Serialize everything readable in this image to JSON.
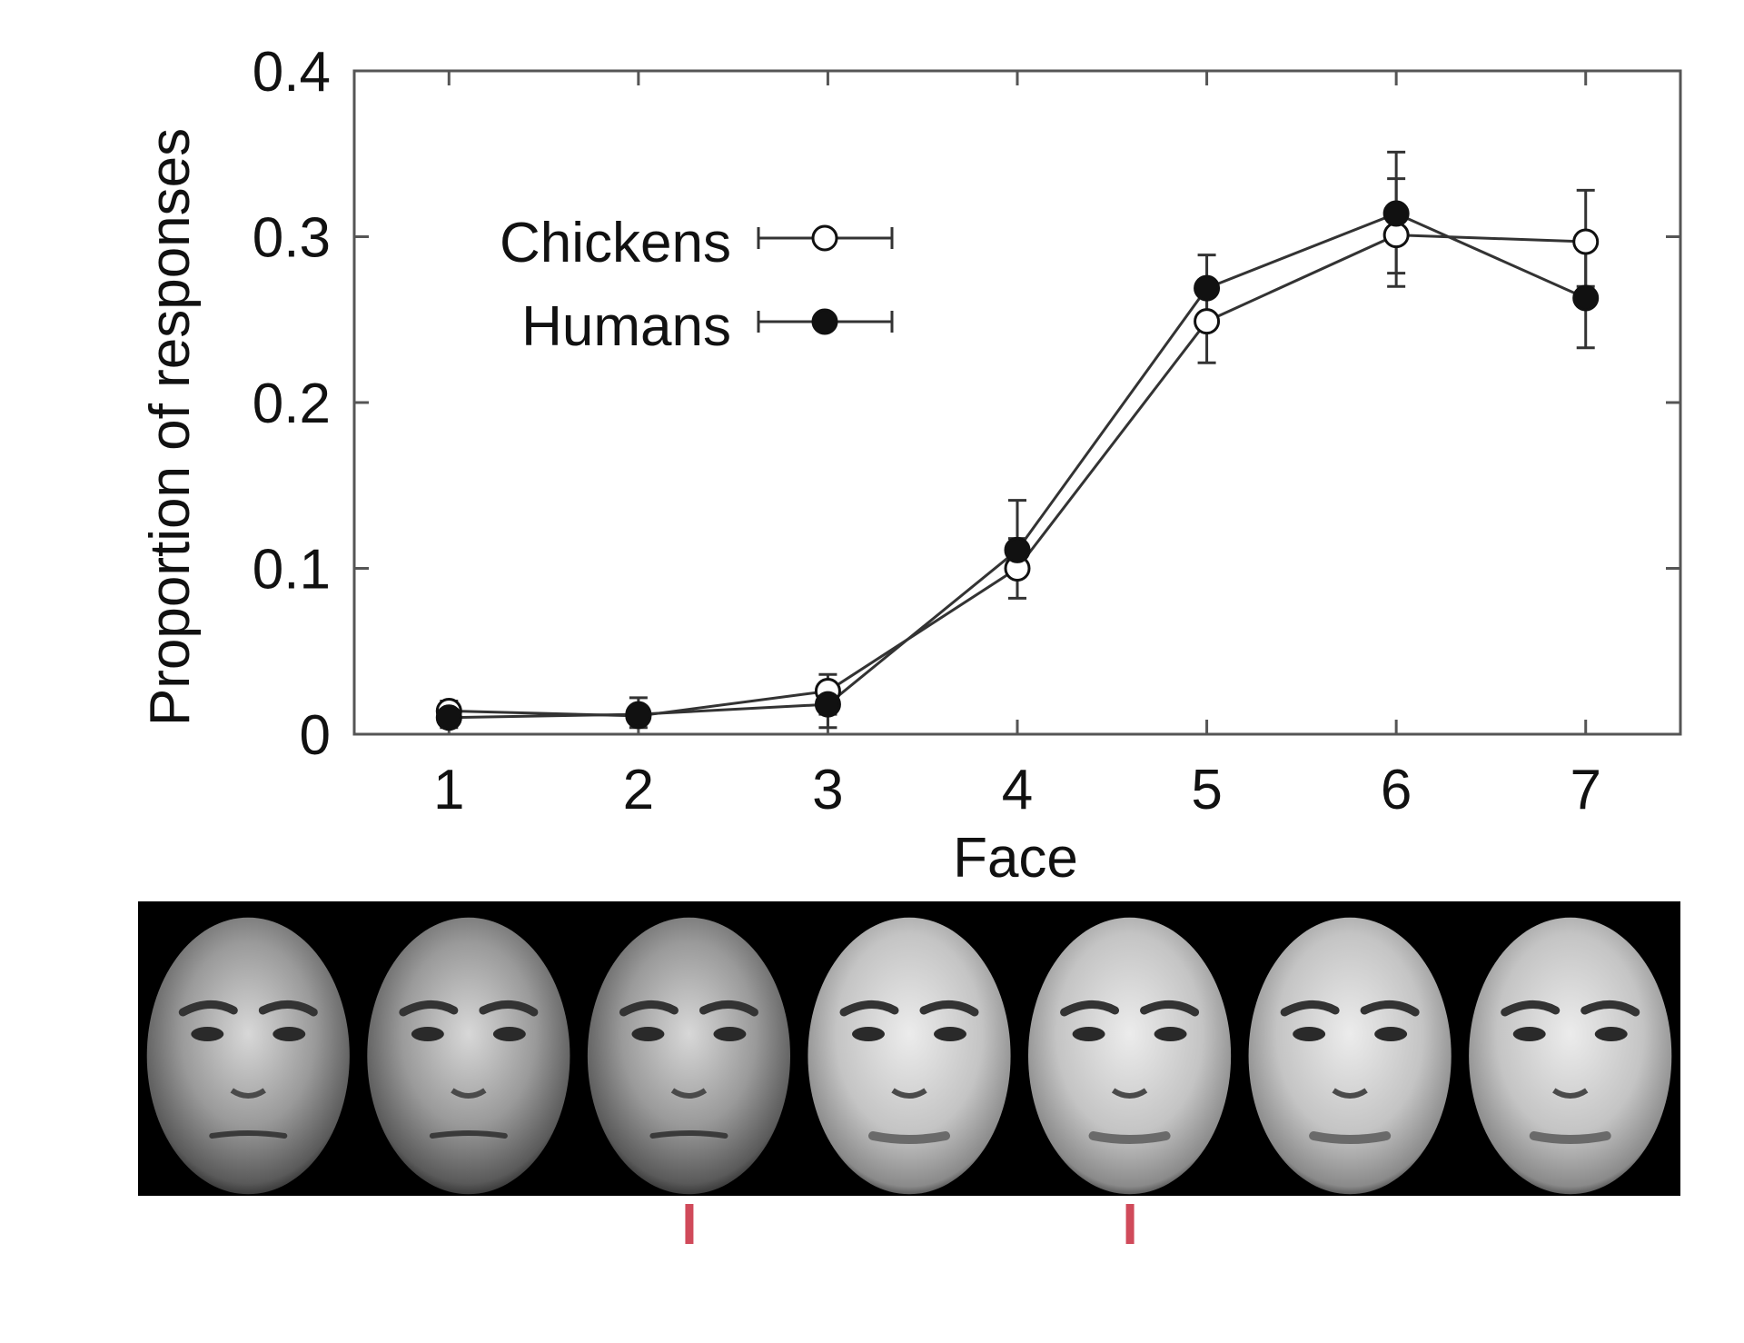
{
  "chart_data": {
    "type": "line",
    "title": "",
    "xlabel": "Face",
    "ylabel": "Proportion of responses",
    "x": [
      1,
      2,
      3,
      4,
      5,
      6,
      7
    ],
    "x_tick_labels": [
      "1",
      "2",
      "3",
      "4",
      "5",
      "6",
      "7"
    ],
    "xlim": [
      0.5,
      7.5
    ],
    "ylim": [
      0,
      0.4
    ],
    "y_ticks": [
      0,
      0.1,
      0.2,
      0.3,
      0.4
    ],
    "y_tick_labels": [
      "0",
      "0.1",
      "0.2",
      "0.3",
      "0.4"
    ],
    "grid": false,
    "legend_position": "upper-left",
    "series": [
      {
        "name": "Chickens",
        "marker": "open-circle",
        "values": [
          0.014,
          0.011,
          0.026,
          0.1,
          0.249,
          0.301,
          0.297
        ],
        "err_low": [
          0.008,
          0.006,
          0.012,
          0.082,
          0.224,
          0.27,
          0.27
        ],
        "err_high": [
          0.02,
          0.016,
          0.036,
          0.118,
          0.274,
          0.335,
          0.328
        ]
      },
      {
        "name": "Humans",
        "marker": "filled-circle",
        "values": [
          0.01,
          0.012,
          0.018,
          0.111,
          0.269,
          0.314,
          0.263
        ],
        "err_low": [
          0.004,
          0.004,
          0.004,
          0.095,
          0.25,
          0.278,
          0.233
        ],
        "err_high": [
          0.016,
          0.022,
          0.03,
          0.141,
          0.289,
          0.351,
          0.293
        ]
      }
    ]
  },
  "faces_strip": {
    "count": 7,
    "description_faces": [
      "male",
      "male",
      "male",
      "morph",
      "morph",
      "female",
      "female"
    ],
    "marker_color": "#d04a5a",
    "marked_faces": [
      3,
      5
    ]
  },
  "colors": {
    "line": "#333333",
    "axis": "#555555",
    "strip_background": "#000000"
  }
}
